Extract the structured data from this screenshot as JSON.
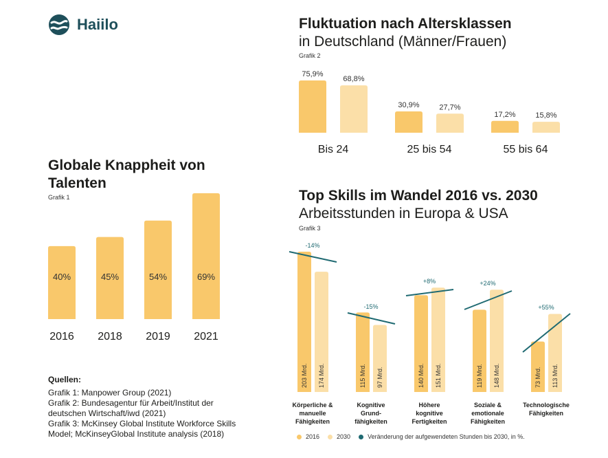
{
  "brand": {
    "name": "Haiilo"
  },
  "colors": {
    "c2016": "#f9c86b",
    "c2030": "#fbdfa8",
    "trend": "#1f6a72"
  },
  "chart1": {
    "title": "Globale Knappheit von Talenten",
    "caption": "Grafik 1"
  },
  "chart2": {
    "title": "Fluktuation nach Altersklassen",
    "subtitle": "in Deutschland (Männer/Frauen)",
    "caption": "Grafik 2"
  },
  "chart3": {
    "title": "Top Skills im Wandel 2016 vs. 2030",
    "subtitle": "Arbeitsstunden in Europa & USA",
    "caption": "Grafik 3",
    "legend": {
      "s2016": "2016",
      "s2030": "2030",
      "trend": "Veränderung der aufgewendeten Stunden bis 2030, in %."
    }
  },
  "sources": {
    "title": "Quellen:",
    "lines": [
      "Grafik 1: Manpower Group (2021)",
      "Grafik 2: Bundesagentur für Arbeit/Institut der",
      "deutschen Wirtschaft/iwd (2021)",
      "Grafik 3: McKinsey Global Institute Workforce Skills",
      "Model; McKinseyGlobal Institute analysis (2018)"
    ]
  },
  "chart_data": [
    {
      "type": "bar",
      "title": "Globale Knappheit von Talenten",
      "categories": [
        "2016",
        "2018",
        "2019",
        "2021"
      ],
      "values": [
        40,
        45,
        54,
        69
      ],
      "value_labels": [
        "40%",
        "45%",
        "54%",
        "69%"
      ],
      "ylim": [
        0,
        69
      ]
    },
    {
      "type": "bar",
      "title": "Fluktuation nach Altersklassen",
      "categories": [
        "Bis 24",
        "25 bis 54",
        "55 bis 64"
      ],
      "series": [
        {
          "values": [
            75.9,
            30.9,
            17.2
          ],
          "labels": [
            "75,9%",
            "30,9%",
            "17,2%"
          ]
        },
        {
          "values": [
            68.8,
            27.7,
            15.8
          ],
          "labels": [
            "68,8%",
            "27,7%",
            "15,8%"
          ]
        }
      ],
      "ylim": [
        0,
        75.9
      ]
    },
    {
      "type": "bar",
      "title": "Top Skills im Wandel 2016 vs. 2030",
      "categories": [
        [
          "Körperliche &",
          "manuelle",
          "Fähigkeiten"
        ],
        [
          "Kognitive",
          "Grund-",
          "fähigkeiten"
        ],
        [
          "Höhere",
          "kognitive",
          "Fertigkeiten"
        ],
        [
          "Soziale &",
          "emotionale",
          "Fähigkeiten"
        ],
        [
          "Technologische",
          "Fähigkeiten"
        ]
      ],
      "series": [
        {
          "name": "2016",
          "values": [
            203,
            115,
            140,
            119,
            73
          ],
          "labels": [
            "203 Mrd.",
            "115 Mrd.",
            "140 Mrd.",
            "119 Mrd.",
            "73 Mrd."
          ]
        },
        {
          "name": "2030",
          "values": [
            174,
            97,
            151,
            148,
            113
          ],
          "labels": [
            "174 Mrd.",
            "97 Mrd.",
            "151 Mrd.",
            "148 Mrd.",
            "113 Mrd."
          ]
        }
      ],
      "change_labels": [
        "-14%",
        "-15%",
        "+8%",
        "+24%",
        "+55%"
      ],
      "ylim": [
        0,
        203
      ]
    }
  ]
}
